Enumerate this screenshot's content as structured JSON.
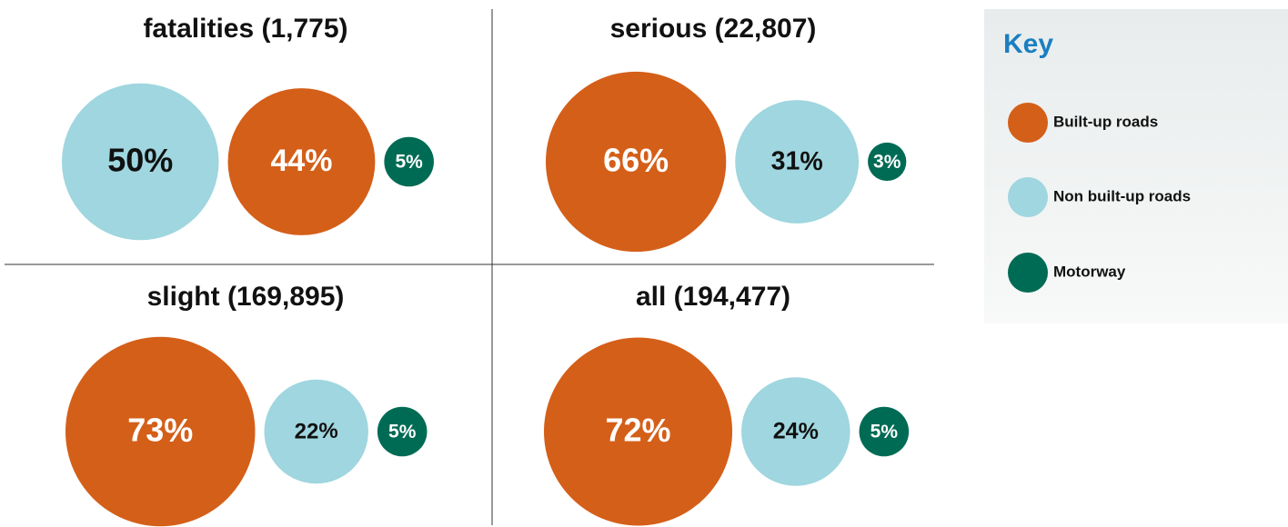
{
  "chart_data": [
    {
      "type": "bubble",
      "title": "fatalities (1,775)",
      "series": [
        {
          "name": "Non built-up roads",
          "color": "#9fd6df",
          "values": [
            50
          ]
        },
        {
          "name": "Built-up roads",
          "color": "#d45f19",
          "values": [
            44
          ]
        },
        {
          "name": "Motorway",
          "color": "#006b54",
          "values": [
            5
          ]
        }
      ]
    },
    {
      "type": "bubble",
      "title": "serious (22,807)",
      "series": [
        {
          "name": "Built-up roads",
          "color": "#d45f19",
          "values": [
            66
          ]
        },
        {
          "name": "Non built-up roads",
          "color": "#9fd6df",
          "values": [
            31
          ]
        },
        {
          "name": "Motorway",
          "color": "#006b54",
          "values": [
            3
          ]
        }
      ]
    },
    {
      "type": "bubble",
      "title": "slight (169,895)",
      "series": [
        {
          "name": "Built-up roads",
          "color": "#d45f19",
          "values": [
            73
          ]
        },
        {
          "name": "Non built-up roads",
          "color": "#9fd6df",
          "values": [
            22
          ]
        },
        {
          "name": "Motorway",
          "color": "#006b54",
          "values": [
            5
          ]
        }
      ]
    },
    {
      "type": "bubble",
      "title": "all (194,477)",
      "series": [
        {
          "name": "Built-up roads",
          "color": "#d45f19",
          "values": [
            72
          ]
        },
        {
          "name": "Non built-up roads",
          "color": "#9fd6df",
          "values": [
            24
          ]
        },
        {
          "name": "Motorway",
          "color": "#006b54",
          "values": [
            5
          ]
        }
      ]
    }
  ],
  "legend": {
    "title": "Key"
  }
}
